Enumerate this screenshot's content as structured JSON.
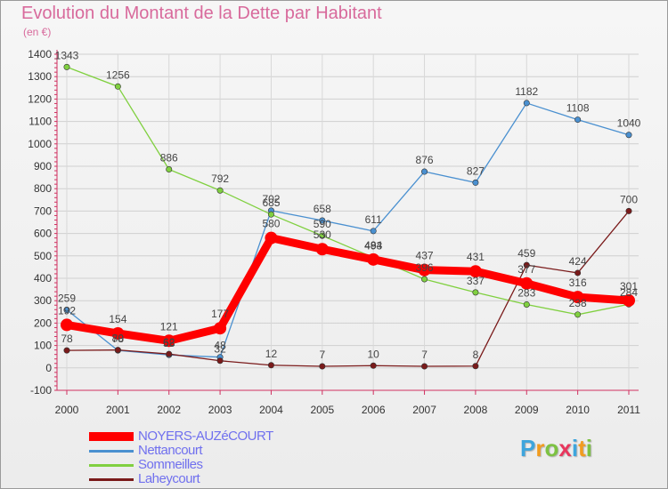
{
  "header": {
    "title": "Evolution du Montant de la Dette par Habitant",
    "subtitle": "(en €)"
  },
  "logo": {
    "letters": [
      "P",
      "r",
      "o",
      "x",
      "i",
      "t",
      "i"
    ],
    "colors": [
      "#3ea5dd",
      "#f29c1f",
      "#7dc242",
      "#e8365d",
      "#3ea5dd",
      "#f29c1f",
      "#7dc242"
    ]
  },
  "chart_data": {
    "type": "line",
    "title": "Evolution du Montant de la Dette par Habitant",
    "subtitle": "(en €)",
    "xlabel": "",
    "ylabel": "",
    "x": [
      "2000",
      "2001",
      "2002",
      "2003",
      "2004",
      "2005",
      "2006",
      "2007",
      "2008",
      "2009",
      "2010",
      "2011"
    ],
    "ylim": [
      -100,
      1400
    ],
    "yticks": [
      -100,
      0,
      100,
      200,
      300,
      400,
      500,
      600,
      700,
      800,
      900,
      1000,
      1100,
      1200,
      1300,
      1400
    ],
    "grid": true,
    "legend_position": "bottom-left",
    "series": [
      {
        "name": "NOYERS-AUZéCOURT",
        "color": "#ff0000",
        "values": [
          192,
          154,
          121,
          177,
          580,
          530,
          484,
          437,
          431,
          377,
          316,
          301
        ]
      },
      {
        "name": "Nettancourt",
        "color": "#4a90d0",
        "values": [
          259,
          78,
          58,
          48,
          702,
          658,
          611,
          876,
          827,
          1182,
          1108,
          1040
        ]
      },
      {
        "name": "Sommeilles",
        "color": "#80d040",
        "values": [
          1343,
          1256,
          886,
          792,
          685,
          590,
          493,
          396,
          337,
          283,
          238,
          284
        ]
      },
      {
        "name": "Laheycourt",
        "color": "#7a1a1a",
        "values": [
          78,
          80,
          62,
          32,
          12,
          7,
          10,
          7,
          8,
          459,
          424,
          700
        ]
      }
    ]
  }
}
